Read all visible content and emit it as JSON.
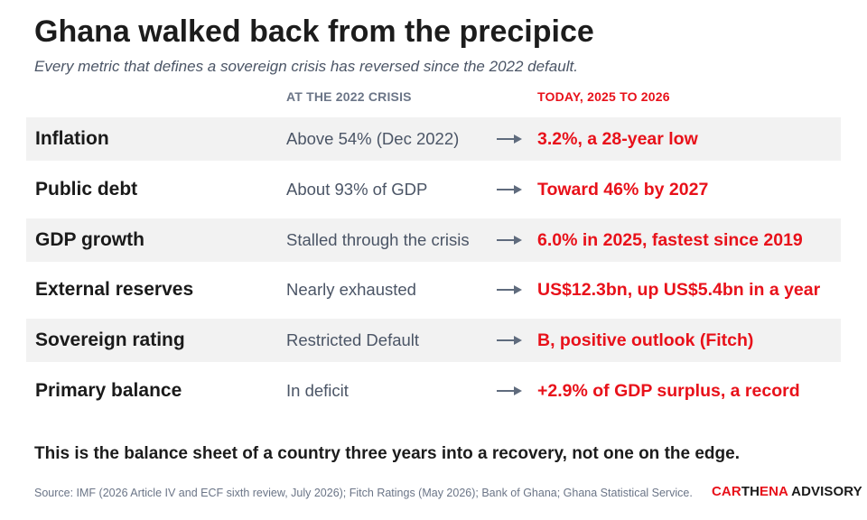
{
  "header": {
    "title": "Ghana walked back from the precipice",
    "subtitle": "Every metric that defines a sovereign crisis has reversed since the 2022 default."
  },
  "columns": {
    "crisis": "AT THE 2022 CRISIS",
    "today": "TODAY, 2025 TO 2026"
  },
  "rows": [
    {
      "metric": "Inflation",
      "before": "Above 54% (Dec 2022)",
      "after": "3.2%, a 28-year low"
    },
    {
      "metric": "Public debt",
      "before": "About 93% of GDP",
      "after": "Toward 46% by 2027"
    },
    {
      "metric": "GDP growth",
      "before": "Stalled through the crisis",
      "after": "6.0% in 2025, fastest since 2019"
    },
    {
      "metric": "External reserves",
      "before": "Nearly exhausted",
      "after": "US$12.3bn, up US$5.4bn in a year"
    },
    {
      "metric": "Sovereign rating",
      "before": "Restricted Default",
      "after": "B, positive outlook (Fitch)"
    },
    {
      "metric": "Primary balance",
      "before": "In deficit",
      "after": "+2.9% of GDP surplus, a record"
    }
  ],
  "conclusion": "This is the balance sheet of a country three years into a recovery, not one on the edge.",
  "source": "Source: IMF (2026 Article IV and ECF sixth review, July 2026); Fitch Ratings (May 2026); Bank of Ghana; Ghana Statistical Service.",
  "brand": {
    "part1": "CAR",
    "part2": "TH",
    "part3": "ENA",
    "part4": " ADVISORY"
  },
  "colors": {
    "accent": "#e8111a",
    "muted": "#4b5566",
    "shade": "#f2f2f2",
    "arrow": "#5f6b7d"
  },
  "icons": {
    "arrow": "arrow-right-icon"
  }
}
